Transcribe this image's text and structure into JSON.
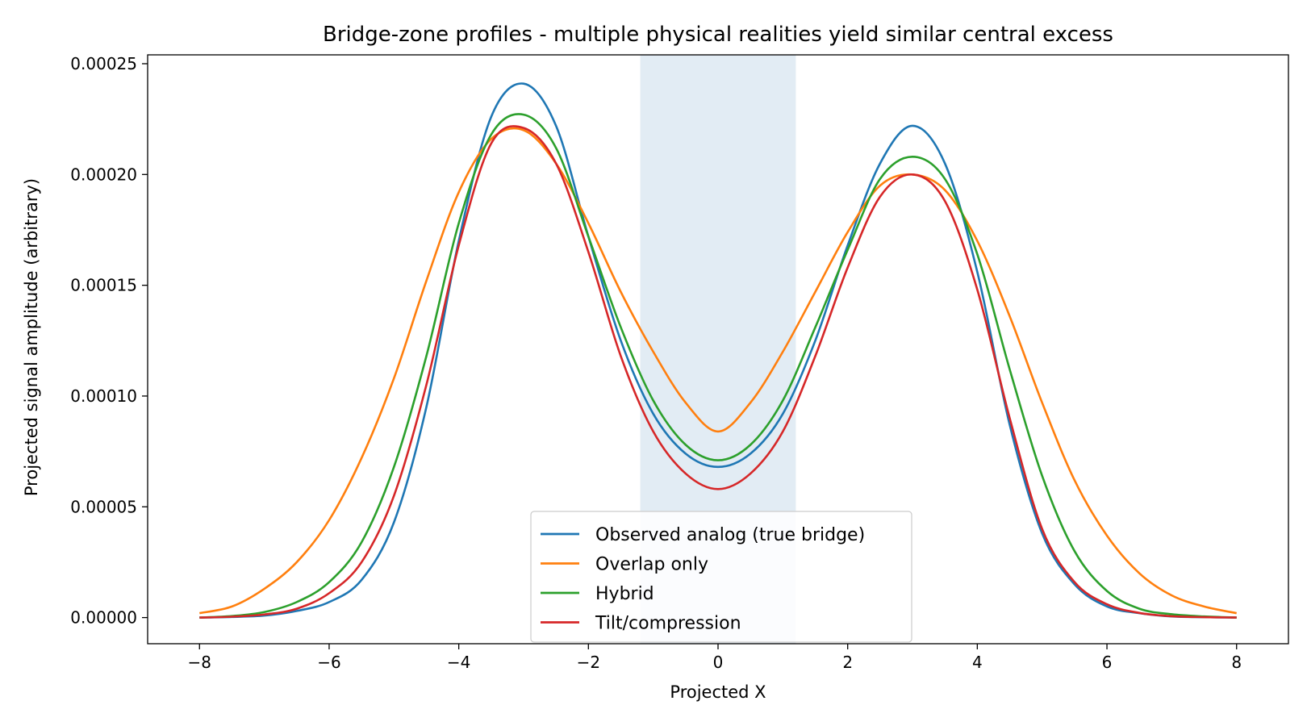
{
  "chart_data": {
    "type": "line",
    "title": "Bridge-zone profiles - multiple physical realities yield similar central excess",
    "xlabel": "Projected X",
    "ylabel": "Projected signal amplitude (arbitrary)",
    "xlim": [
      -8.8,
      8.8
    ],
    "ylim": [
      -1.18e-05,
      0.000254
    ],
    "xticks": [
      -8,
      -6,
      -4,
      -2,
      0,
      2,
      4,
      6,
      8
    ],
    "xtick_labels": [
      "−8",
      "−6",
      "−4",
      "−2",
      "0",
      "2",
      "4",
      "6",
      "8"
    ],
    "yticks": [
      0,
      5e-05,
      0.0001,
      0.00015,
      0.0002,
      0.00025
    ],
    "ytick_labels": [
      "0.00000",
      "0.00005",
      "0.00010",
      "0.00015",
      "0.00020",
      "0.00025"
    ],
    "grid": false,
    "legend_position": "bottom-center",
    "shaded_region": {
      "x": [
        -1.2,
        1.2
      ],
      "color": "#e2ecf4"
    },
    "x": [
      -8,
      -7.5,
      -7,
      -6.5,
      -6,
      -5.5,
      -5,
      -4.5,
      -4,
      -3.5,
      -3,
      -2.5,
      -2,
      -1.5,
      -1,
      -0.5,
      0,
      0.5,
      1,
      1.5,
      2,
      2.5,
      3,
      3.5,
      4,
      4.5,
      5,
      5.5,
      6,
      6.5,
      7,
      7.5,
      8
    ],
    "series": [
      {
        "name": "Observed analog (true bridge)",
        "color": "#1f77b4",
        "values": [
          0,
          3e-07,
          9e-07,
          3e-06,
          7e-06,
          1.7e-05,
          4.3e-05,
          9.5e-05,
          0.00017,
          0.000226,
          0.000241,
          0.000222,
          0.000172,
          0.000125,
          9.2e-05,
          7.4e-05,
          6.8e-05,
          7.4e-05,
          9.2e-05,
          0.000125,
          0.000168,
          0.000205,
          0.000222,
          0.000205,
          0.000156,
          8.7e-05,
          3.8e-05,
          1.5e-05,
          5e-06,
          2e-06,
          5e-07,
          2e-07,
          0
        ]
      },
      {
        "name": "Overlap only",
        "color": "#ff7f0e",
        "values": [
          2e-06,
          5e-06,
          1.3e-05,
          2.5e-05,
          4.4e-05,
          7.2e-05,
          0.000108,
          0.000152,
          0.000192,
          0.000216,
          0.00022,
          0.000205,
          0.000178,
          0.000147,
          0.00012,
          9.7e-05,
          8.4e-05,
          9.7e-05,
          0.00012,
          0.000147,
          0.000174,
          0.000195,
          0.0002,
          0.000193,
          0.00017,
          0.000136,
          9.7e-05,
          6.2e-05,
          3.7e-05,
          2e-05,
          1e-05,
          5e-06,
          2e-06
        ]
      },
      {
        "name": "Hybrid",
        "color": "#2ca02c",
        "values": [
          0,
          7e-07,
          2.5e-06,
          7e-06,
          1.6e-05,
          3.4e-05,
          6.8e-05,
          0.000118,
          0.000178,
          0.000218,
          0.000227,
          0.000212,
          0.000172,
          0.000131,
          9.8e-05,
          7.8e-05,
          7.1e-05,
          7.8e-05,
          9.8e-05,
          0.000131,
          0.000166,
          0.000198,
          0.000208,
          0.000198,
          0.000164,
          0.000112,
          6.4e-05,
          3e-05,
          1.2e-05,
          4e-06,
          1.5e-06,
          5e-07,
          0
        ]
      },
      {
        "name": "Tilt/compression",
        "color": "#d62728",
        "values": [
          0,
          4e-07,
          1.4e-06,
          4e-06,
          1.1e-05,
          2.5e-05,
          5.5e-05,
          0.000105,
          0.000168,
          0.000214,
          0.000221,
          0.000205,
          0.000165,
          0.000118,
          8.4e-05,
          6.5e-05,
          5.8e-05,
          6.5e-05,
          8.4e-05,
          0.000118,
          0.000158,
          0.00019,
          0.0002,
          0.000188,
          0.000148,
          9e-05,
          4e-05,
          1.6e-05,
          6e-06,
          2.1e-06,
          6e-07,
          2e-07,
          0
        ]
      }
    ]
  }
}
